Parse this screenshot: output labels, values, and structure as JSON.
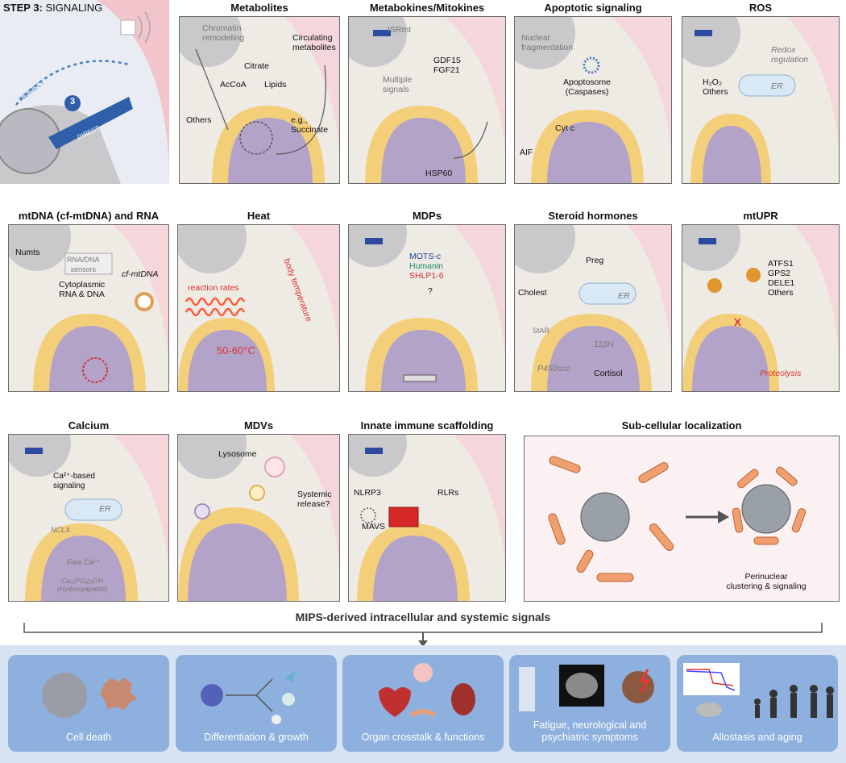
{
  "step": {
    "bold": "STEP 3:",
    "rest": " SIGNALING",
    "number": "3",
    "indirect": "INDIRECT",
    "direct": "DIRECT"
  },
  "panels": {
    "metabolites": {
      "title": "Metabolites",
      "labels": {
        "chromatin": "Chromatin\nremodeling",
        "circulating": "Circulating\nmetabolites",
        "citrate": "Citrate",
        "acoa": "AcCoA",
        "lipids": "Lipids",
        "others": "Others",
        "succinate": "e.g.,\nSuccinate"
      }
    },
    "metabokines": {
      "title": "Metabokines/Mitokines",
      "labels": {
        "isrmt": "ISRmt",
        "gdf": "GDF15\nFGF21",
        "multiple": "Multiple\nsignals",
        "hsp": "HSP60"
      }
    },
    "apoptotic": {
      "title": "Apoptotic signaling",
      "labels": {
        "nuclear": "Nuclear\nfragmentation",
        "apopto": "Apoptosome\n(Caspases)",
        "cytc": "Cyt c",
        "aif": "AIF"
      }
    },
    "ros": {
      "title": "ROS",
      "labels": {
        "redox": "Redox\nregulation",
        "h2o2": "H₂O₂\nOthers",
        "er": "ER"
      }
    },
    "mtdna": {
      "title": "mtDNA (cf-mtDNA) and RNA",
      "labels": {
        "numts": "Numts",
        "sensors": "RNA/DNA\nsensors",
        "cyto": "Cytoplasmic\nRNA & DNA",
        "cfmt": "cf-mtDNA"
      }
    },
    "heat": {
      "title": "Heat",
      "labels": {
        "reaction": "reaction rates",
        "body": "body temperature",
        "temp": "50-60°C"
      }
    },
    "mdps": {
      "title": "MDPs",
      "labels": {
        "motsc": "MOTS-c",
        "humanin": "Humanin",
        "shlp": "SHLP1-6",
        "q": "?"
      }
    },
    "steroid": {
      "title": "Steroid hormones",
      "labels": {
        "preg": "Preg",
        "cholest": "Cholest",
        "er": "ER",
        "star": "StAR",
        "p450": "P450scc",
        "hsd": "11βH",
        "cortisol": "Cortisol"
      }
    },
    "mtupr": {
      "title": "mtUPR",
      "labels": {
        "list": "ATFS1\nGPS2\nDELE1\nOthers",
        "x": "X",
        "proteolysis": "Proteolysis"
      }
    },
    "calcium": {
      "title": "Calcium",
      "labels": {
        "ca": "Ca²⁺-based\nsignaling",
        "er": "ER",
        "nclx": "NCLX",
        "free": "Free Ca²⁺",
        "hydroxy": "Ca₅(PO₄)₃OH\n(Hydroxyapatite)"
      }
    },
    "mdvs": {
      "title": "MDVs",
      "labels": {
        "lysosome": "Lysosome",
        "systemic": "Systemic\nrelease?"
      }
    },
    "innate": {
      "title": "Innate immune scaffolding",
      "labels": {
        "nlrp3": "NLRP3",
        "rlrs": "RLRs",
        "mavs": "MAVS"
      }
    },
    "subcell": {
      "title": "Sub-cellular localization",
      "labels": {
        "perinuclear": "Perinuclear\nclustering & signaling"
      }
    }
  },
  "summary": "MIPS-derived intracellular and systemic signals",
  "outcomes": [
    {
      "label": "Cell death"
    },
    {
      "label": "Differentiation & growth"
    },
    {
      "label": "Organ crosstalk & functions"
    },
    {
      "label": "Fatigue, neurological and\npsychiatric symptoms"
    },
    {
      "label": "Allostasis and aging"
    }
  ]
}
